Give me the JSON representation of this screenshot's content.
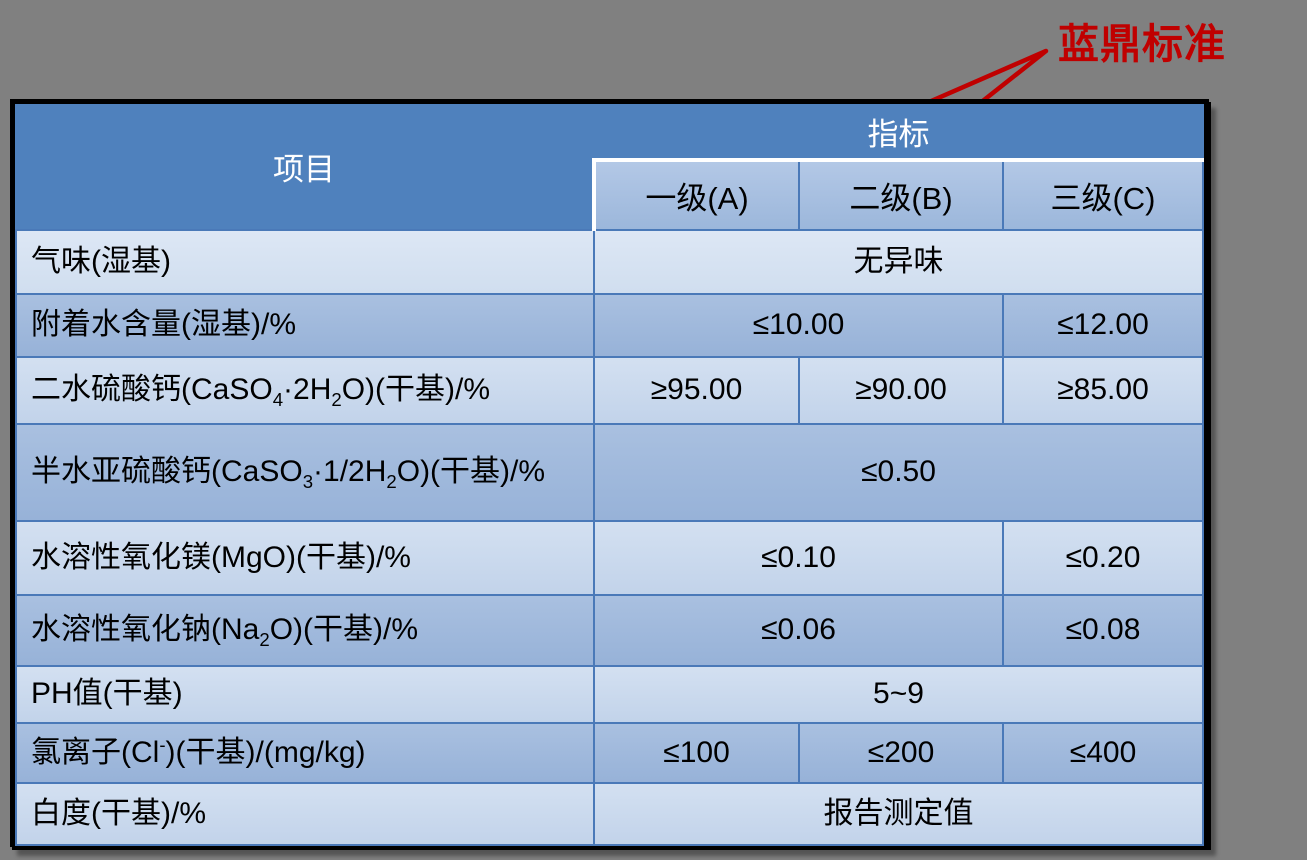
{
  "annotation": {
    "label": "蓝鼎标准",
    "color": "#C00000"
  },
  "table": {
    "header": {
      "item": "项目",
      "indicator": "指标",
      "grades": [
        "一级(A)",
        "二级(B)",
        "三级(C)"
      ]
    },
    "rows": [
      {
        "item": "气味(湿基)",
        "cells": [
          {
            "span": 3,
            "value": "无异味"
          }
        ]
      },
      {
        "item": "附着水含量(湿基)/%",
        "cells": [
          {
            "span": 2,
            "value": "≤10.00"
          },
          {
            "span": 1,
            "value": "≤12.00"
          }
        ]
      },
      {
        "item": "二水硫酸钙(CaSO~4~·2H~2~O)(干基)/%",
        "cells": [
          {
            "span": 1,
            "value": "≥95.00"
          },
          {
            "span": 1,
            "value": "≥90.00"
          },
          {
            "span": 1,
            "value": "≥85.00"
          }
        ]
      },
      {
        "item": "半水亚硫酸钙(CaSO~3~·1/2H~2~O)(干基)/%",
        "cells": [
          {
            "span": 3,
            "value": "≤0.50"
          }
        ]
      },
      {
        "item": "水溶性氧化镁(MgO)(干基)/%",
        "cells": [
          {
            "span": 2,
            "value": "≤0.10"
          },
          {
            "span": 1,
            "value": "≤0.20"
          }
        ]
      },
      {
        "item": "水溶性氧化钠(Na~2~O)(干基)/%",
        "cells": [
          {
            "span": 2,
            "value": "≤0.06"
          },
          {
            "span": 1,
            "value": "≤0.08"
          }
        ]
      },
      {
        "item": "PH值(干基)",
        "cells": [
          {
            "span": 3,
            "value": "5~9"
          }
        ]
      },
      {
        "item": "氯离子(Cl^-^)(干基)/(mg/kg)",
        "cells": [
          {
            "span": 1,
            "value": "≤100"
          },
          {
            "span": 1,
            "value": "≤200"
          },
          {
            "span": 1,
            "value": "≤400"
          }
        ]
      },
      {
        "item": "白度(干基)/%",
        "cells": [
          {
            "span": 3,
            "value": "报告测定值"
          }
        ]
      }
    ]
  },
  "colors": {
    "page_background": "#808080",
    "header_blue": "#4F81BD",
    "band_light": "#C9D8EC",
    "band_dark": "#A0B9DC",
    "grid_line": "#4A79B8",
    "outer_border": "#000000",
    "highlight_red": "#C00000"
  }
}
